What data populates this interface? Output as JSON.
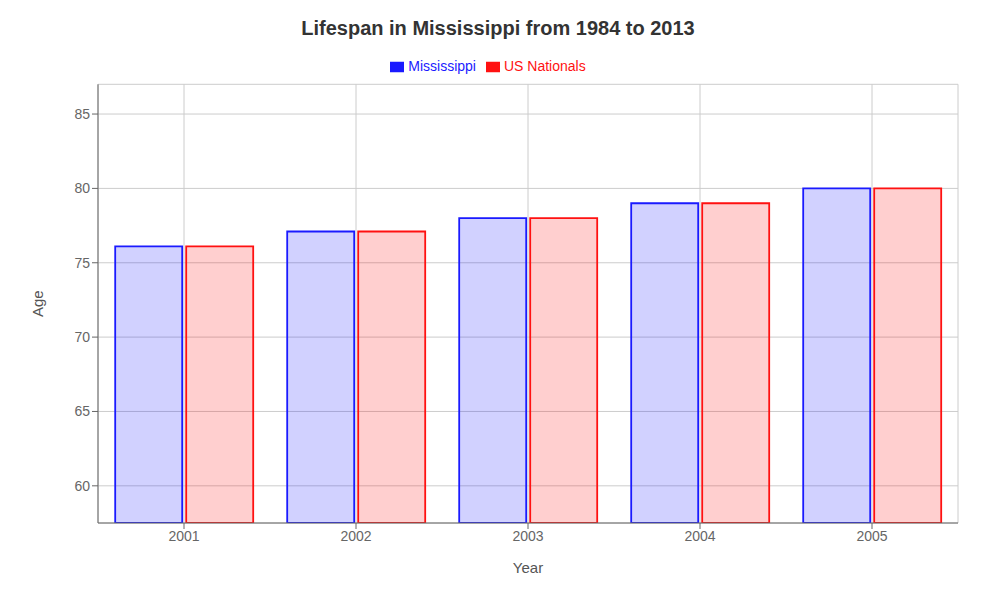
{
  "chart_data": {
    "type": "bar",
    "title": "Lifespan in Mississippi from 1984 to 2013",
    "x_label": "Year",
    "y_label": "Age",
    "categories": [
      "2001",
      "2002",
      "2003",
      "2004",
      "2005"
    ],
    "series": [
      {
        "name": "Mississippi",
        "color": "#1a1aff",
        "values": [
          76.1,
          77.1,
          78.0,
          79.0,
          80.0
        ]
      },
      {
        "name": "US Nationals",
        "color": "#ff1111",
        "values": [
          76.1,
          77.1,
          78.0,
          79.0,
          80.0
        ]
      }
    ],
    "ylim": [
      57.5,
      87
    ],
    "yticks": [
      60,
      65,
      70,
      75,
      80,
      85
    ],
    "grid": true,
    "legend": "top"
  }
}
